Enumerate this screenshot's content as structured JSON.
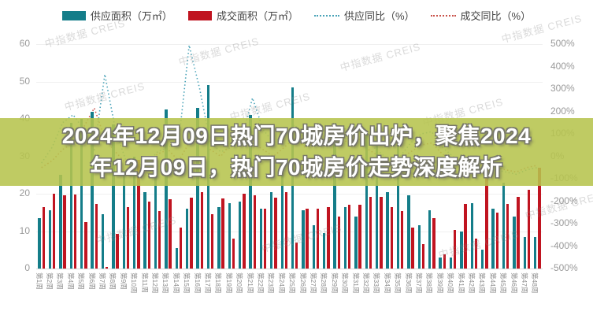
{
  "title_overlay": {
    "line1": "2024年12月09日热门70城房价出炉，聚焦2024",
    "line2": "年12月09日，热门70城房价走势深度解析"
  },
  "watermark_text": "中指数据 CREIS",
  "legend": {
    "items": [
      {
        "label": "供应面积（万㎡）",
        "type": "bar",
        "color": "#147d89"
      },
      {
        "label": "成交面积（万㎡）",
        "type": "bar",
        "color": "#c01420"
      },
      {
        "label": "供应同比（%）",
        "type": "line",
        "color": "#4aa3b8"
      },
      {
        "label": "成交同比（%）",
        "type": "line",
        "color": "#c9524a"
      }
    ]
  },
  "chart_data": {
    "type": "bar+line-dual-axis",
    "categories": [
      "第1周",
      "第2周",
      "第3周",
      "第4周",
      "第5周",
      "第6周",
      "第7周",
      "第8周",
      "第9周",
      "第10周",
      "第11周",
      "第12周",
      "第13周",
      "第14周",
      "第15周",
      "第16周",
      "第17周",
      "第18周",
      "第19周",
      "第20周",
      "第21周",
      "第22周",
      "第23周",
      "第24周",
      "第25周",
      "第26周",
      "第27周",
      "第28周",
      "第29周",
      "第30周",
      "第31周",
      "第32周",
      "第33周",
      "第34周",
      "第35周",
      "第36周",
      "第37周",
      "第38周",
      "第39周",
      "第40周",
      "第41周",
      "第42周",
      "第43周",
      "第44周",
      "第45周",
      "第46周",
      "第47周",
      "第48周"
    ],
    "series": [
      {
        "name": "供应面积（万㎡）",
        "type": "bar",
        "axis": "left",
        "color": "#147d89",
        "values": [
          13.5,
          15.5,
          25,
          39,
          40,
          42,
          14.5,
          38.5,
          25,
          30,
          20.5,
          30,
          42.5,
          5.5,
          16,
          43,
          49,
          16.5,
          17.5,
          18,
          41,
          16,
          20.5,
          28,
          48.5,
          15.5,
          11.5,
          9.5,
          39,
          16.5,
          14,
          36,
          38,
          20.5,
          35,
          19.5,
          11.5,
          15.5,
          3,
          3,
          10,
          17.5,
          5,
          16,
          23,
          14,
          8.5,
          8.5
        ]
      },
      {
        "name": "成交面积（万㎡）",
        "type": "bar",
        "axis": "left",
        "color": "#c01420",
        "values": [
          16.5,
          20,
          19.5,
          19.8,
          12.5,
          17.3,
          0.5,
          9.3,
          16.4,
          29,
          18,
          15.3,
          18.5,
          11,
          19,
          20.5,
          14.5,
          18.8,
          8,
          20,
          19.5,
          16,
          19,
          20.5,
          7,
          16,
          16,
          16.4,
          14,
          17,
          17,
          19.2,
          19.2,
          16.4,
          15.3,
          11,
          6.5,
          13.5,
          3.7,
          10.4,
          17.3,
          8,
          30,
          15,
          17.2,
          19.2,
          21,
          27
        ]
      },
      {
        "name": "供应同比（%）",
        "type": "line",
        "axis": "right",
        "color": "#4aa3b8",
        "values": [
          -30,
          40,
          150,
          185,
          120,
          30,
          365,
          120,
          -20,
          -40,
          -30,
          20,
          40,
          60,
          495,
          300,
          60,
          20,
          40,
          80,
          260,
          120,
          60,
          100,
          140,
          80,
          120,
          140,
          100,
          130,
          140,
          60,
          20,
          -20,
          0,
          60,
          100,
          110,
          40,
          0,
          -30,
          -50,
          -20,
          -60,
          -70,
          -80,
          -60,
          -50
        ]
      },
      {
        "name": "成交同比（%）",
        "type": "line",
        "axis": "right",
        "color": "#c9524a",
        "values": [
          -50,
          -20,
          30,
          60,
          130,
          215,
          80,
          20,
          -30,
          -50,
          -20,
          10,
          30,
          -20,
          60,
          100,
          30,
          0,
          60,
          90,
          60,
          30,
          0,
          40,
          80,
          40,
          60,
          80,
          50,
          70,
          80,
          30,
          0,
          -30,
          -10,
          20,
          50,
          60,
          10,
          -20,
          -40,
          -60,
          -30,
          -50,
          -60,
          -70,
          -50,
          -40
        ]
      }
    ],
    "left_axis": {
      "ticks": [
        0,
        10,
        20,
        30,
        40,
        50,
        60
      ],
      "min": 0,
      "max": 60
    },
    "right_axis": {
      "ticks": [
        "500%",
        "400%",
        "300%",
        "200%",
        "100%",
        "0%",
        "-100%",
        "-200%",
        "-300%",
        "-400%",
        "-500%"
      ],
      "min": -500,
      "max": 500
    },
    "grid": true,
    "legend_position": "top"
  }
}
